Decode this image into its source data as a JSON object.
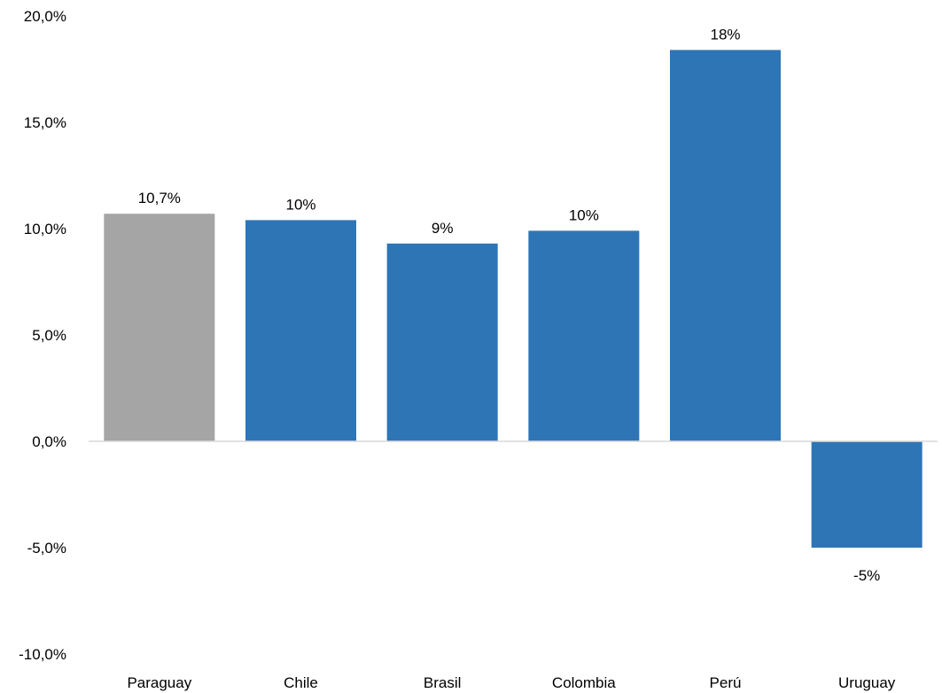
{
  "chart_data": {
    "type": "bar",
    "title": "",
    "xlabel": "",
    "ylabel": "",
    "categories": [
      "Paraguay",
      "Chile",
      "Brasil",
      "Colombia",
      "Perú",
      "Uruguay"
    ],
    "values": [
      10.7,
      10.4,
      9.3,
      9.9,
      18.4,
      -5.0
    ],
    "data_labels": [
      "10,7%",
      "10%",
      "9%",
      "10%",
      "18%",
      "-5%"
    ],
    "ylim": [
      -10,
      20
    ],
    "yticks": [
      20,
      15,
      10,
      5,
      0,
      -5,
      -10
    ],
    "ytick_labels": [
      "20,0%",
      "15,0%",
      "10,0%",
      "5,0%",
      "0,0%",
      "-5,0%",
      "-10,0%"
    ],
    "grid": false,
    "legend": "none",
    "colors": {
      "highlight": "#a5a5a5",
      "default": "#2e75b6",
      "axis": "#d9d9d9"
    },
    "highlight_index": 0
  }
}
